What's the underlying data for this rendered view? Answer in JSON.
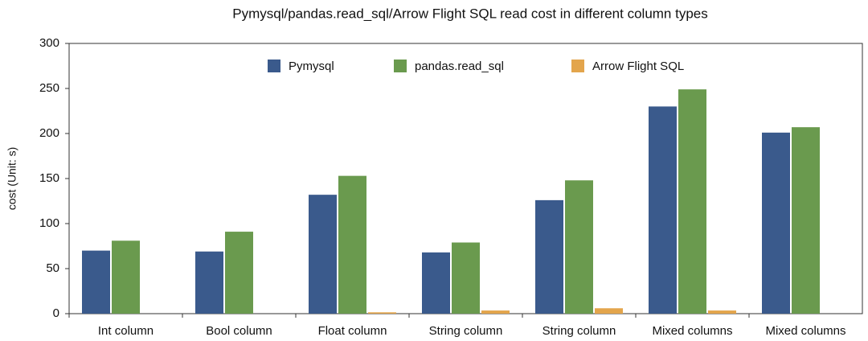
{
  "chart_data": {
    "type": "bar",
    "title": "Pymysql/pandas.read_sql/Arrow Flight SQL read cost in different column types",
    "y_label": "cost (Unit: s)",
    "categories": [
      "Int column",
      "Bool column",
      "Float column",
      "String column",
      "String column",
      "Mixed columns",
      "Mixed columns"
    ],
    "series": [
      {
        "name": "Pymysql",
        "color": "#3a5a8c",
        "values": [
          70,
          69,
          132,
          68,
          126,
          230,
          201
        ]
      },
      {
        "name": "pandas.read_sql",
        "color": "#6a9a4e",
        "values": [
          81,
          91,
          153,
          79,
          148,
          249,
          207
        ]
      },
      {
        "name": "Arrow Flight SQL",
        "color": "#e3a54c",
        "values": [
          0,
          0,
          1.5,
          3.5,
          6,
          3.5,
          0
        ]
      }
    ],
    "ylim": [
      0,
      300
    ],
    "yticks": [
      0,
      50,
      100,
      150,
      200,
      250,
      300
    ],
    "grid": false,
    "legend": "top"
  }
}
